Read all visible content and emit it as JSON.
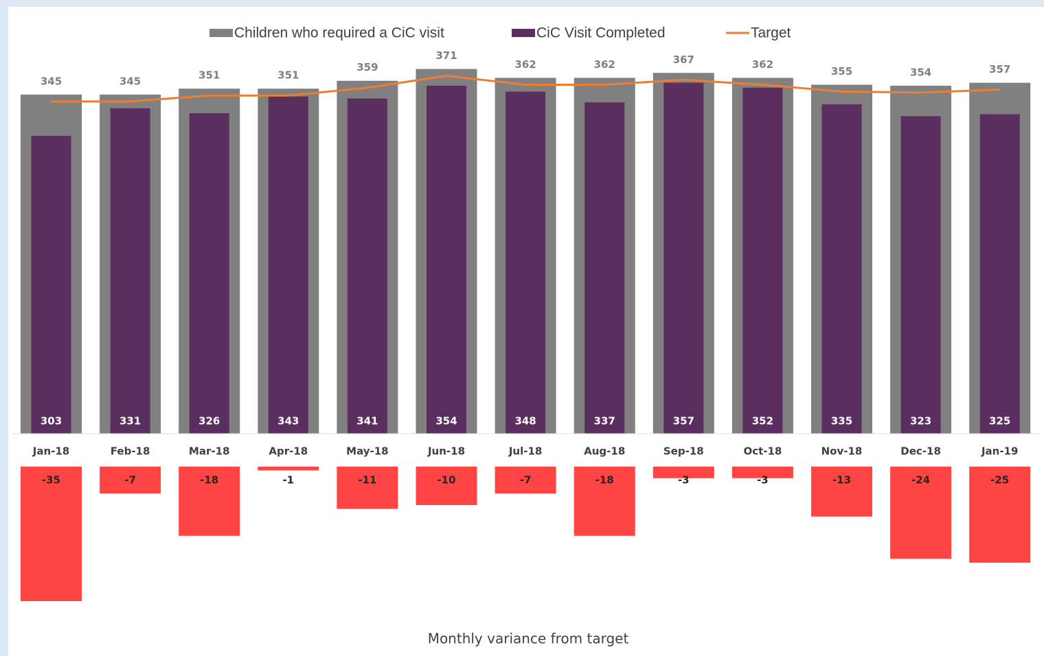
{
  "chart_data": [
    {
      "type": "bar",
      "categories": [
        "Jan-18",
        "Feb-18",
        "Mar-18",
        "Apr-18",
        "May-18",
        "Jun-18",
        "Jul-18",
        "Aug-18",
        "Sep-18",
        "Oct-18",
        "Nov-18",
        "Dec-18",
        "Jan-19"
      ],
      "series": [
        {
          "name": "Children who required a CiC visit",
          "type": "bar",
          "color": "#808080",
          "values": [
            345,
            345,
            351,
            351,
            359,
            371,
            362,
            362,
            367,
            362,
            355,
            354,
            357
          ]
        },
        {
          "name": "CiC Visit Completed",
          "type": "bar",
          "color": "#5a2e5e",
          "values": [
            303,
            331,
            326,
            343,
            341,
            354,
            348,
            337,
            357,
            352,
            335,
            323,
            325
          ]
        },
        {
          "name": "Target",
          "type": "line",
          "color": "#ed7d31",
          "values": [
            338,
            338,
            344,
            344,
            352,
            364,
            355,
            355,
            360,
            355,
            348,
            347,
            350
          ]
        }
      ],
      "ylim": [
        0,
        400
      ]
    },
    {
      "type": "bar",
      "title": "Monthly variance from target",
      "values": [
        -35,
        -7,
        -18,
        -1,
        -11,
        -10,
        -7,
        -18,
        -3,
        -3,
        -13,
        -24,
        -25
      ],
      "color": "#ff4444",
      "ylim": [
        -40,
        0
      ]
    }
  ]
}
